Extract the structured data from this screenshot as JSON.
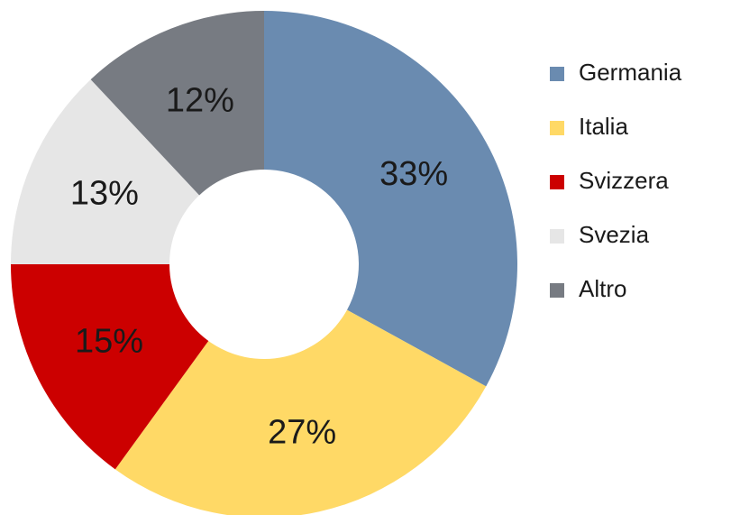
{
  "chart_data": {
    "type": "donut",
    "categories": [
      "Germania",
      "Italia",
      "Svizzera",
      "Svezia",
      "Altro"
    ],
    "values": [
      33,
      27,
      15,
      13,
      12
    ],
    "value_labels": [
      "33%",
      "27%",
      "15%",
      "13%",
      "12%"
    ],
    "colors": [
      "#6a8bb0",
      "#ffd966",
      "#cc0000",
      "#e6e6e6",
      "#777b82"
    ],
    "legend": "right"
  }
}
